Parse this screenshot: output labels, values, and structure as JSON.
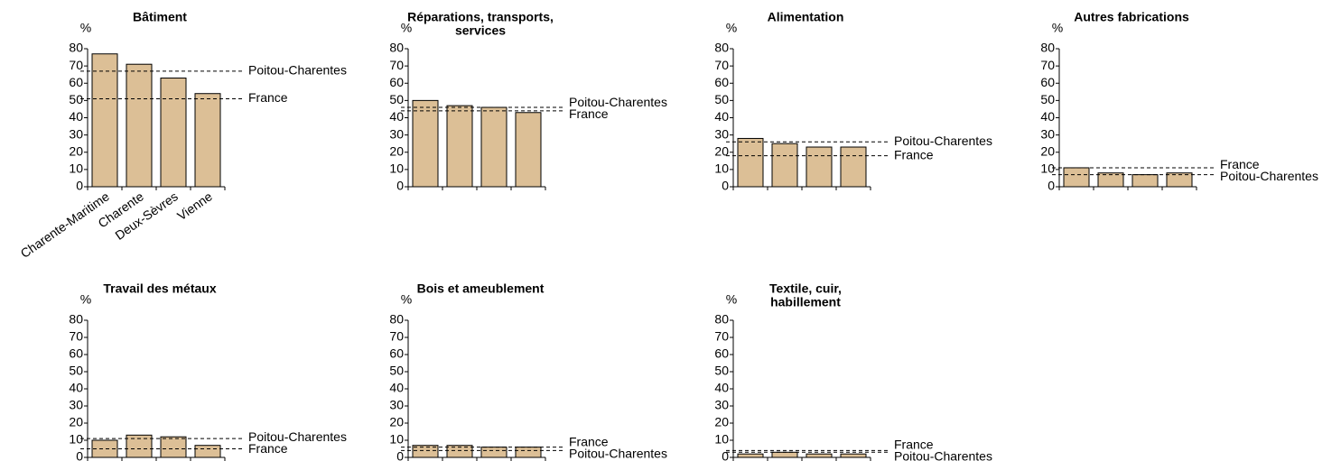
{
  "chart_data": [
    {
      "type": "bar",
      "title": [
        "Bâtiment"
      ],
      "ylabel": "%",
      "categories": [
        "Charente-Maritime",
        "Charente",
        "Deux-Sèvres",
        "Vienne"
      ],
      "values": [
        77,
        71,
        63,
        54
      ],
      "color": "#dcbf96",
      "ylim": [
        0,
        80
      ],
      "yticks": [
        0,
        10,
        20,
        30,
        40,
        50,
        60,
        70,
        80
      ],
      "reference_lines": [
        {
          "name": "Poitou-Charentes",
          "value": 67
        },
        {
          "name": "France",
          "value": 51
        }
      ]
    },
    {
      "type": "bar",
      "title": [
        "Réparations, transports,",
        "services"
      ],
      "ylabel": "%",
      "categories": [
        null,
        null,
        null,
        null
      ],
      "values": [
        50,
        47,
        46,
        43
      ],
      "color": "#dcbf96",
      "ylim": [
        0,
        80
      ],
      "yticks": [
        0,
        10,
        20,
        30,
        40,
        50,
        60,
        70,
        80
      ],
      "reference_lines": [
        {
          "name": "Poitou-Charentes",
          "value": 46
        },
        {
          "name": "France",
          "value": 44
        }
      ]
    },
    {
      "type": "bar",
      "title": [
        "Alimentation"
      ],
      "ylabel": "%",
      "categories": [
        null,
        null,
        null,
        null
      ],
      "values": [
        28,
        25,
        23,
        23
      ],
      "color": "#dcbf96",
      "ylim": [
        0,
        80
      ],
      "yticks": [
        0,
        10,
        20,
        30,
        40,
        50,
        60,
        70,
        80
      ],
      "reference_lines": [
        {
          "name": "Poitou-Charentes",
          "value": 26
        },
        {
          "name": "France",
          "value": 18
        }
      ]
    },
    {
      "type": "bar",
      "title": [
        "Autres fabrications"
      ],
      "ylabel": "%",
      "categories": [
        null,
        null,
        null,
        null
      ],
      "values": [
        11,
        8,
        7,
        8
      ],
      "color": "#dcbf96",
      "ylim": [
        0,
        80
      ],
      "yticks": [
        0,
        10,
        20,
        30,
        40,
        50,
        60,
        70,
        80
      ],
      "reference_lines": [
        {
          "name": "France",
          "value": 11
        },
        {
          "name": "Poitou-Charentes",
          "value": 7
        }
      ]
    },
    {
      "type": "bar",
      "title": [
        "Travail des métaux"
      ],
      "ylabel": "%",
      "categories": [
        null,
        null,
        null,
        null
      ],
      "values": [
        10,
        13,
        12,
        7
      ],
      "color": "#dcbf96",
      "ylim": [
        0,
        80
      ],
      "yticks": [
        0,
        10,
        20,
        30,
        40,
        50,
        60,
        70,
        80
      ],
      "reference_lines": [
        {
          "name": "Poitou-Charentes",
          "value": 11
        },
        {
          "name": "France",
          "value": 5
        }
      ]
    },
    {
      "type": "bar",
      "title": [
        "Bois et ameublement"
      ],
      "ylabel": "%",
      "categories": [
        null,
        null,
        null,
        null
      ],
      "values": [
        7,
        7,
        6,
        6
      ],
      "color": "#dcbf96",
      "ylim": [
        0,
        80
      ],
      "yticks": [
        0,
        10,
        20,
        30,
        40,
        50,
        60,
        70,
        80
      ],
      "reference_lines": [
        {
          "name": "France",
          "value": 6
        },
        {
          "name": "Poitou-Charentes",
          "value": 4
        }
      ]
    },
    {
      "type": "bar",
      "title": [
        "Textile, cuir,",
        "habillement"
      ],
      "ylabel": "%",
      "categories": [
        null,
        null,
        null,
        null
      ],
      "values": [
        2,
        3,
        2,
        2
      ],
      "color": "#dcbf96",
      "ylim": [
        0,
        80
      ],
      "yticks": [
        0,
        10,
        20,
        30,
        40,
        50,
        60,
        70,
        80
      ],
      "reference_lines": [
        {
          "name": "France",
          "value": 4
        },
        {
          "name": "Poitou-Charentes",
          "value": 3
        }
      ]
    }
  ]
}
